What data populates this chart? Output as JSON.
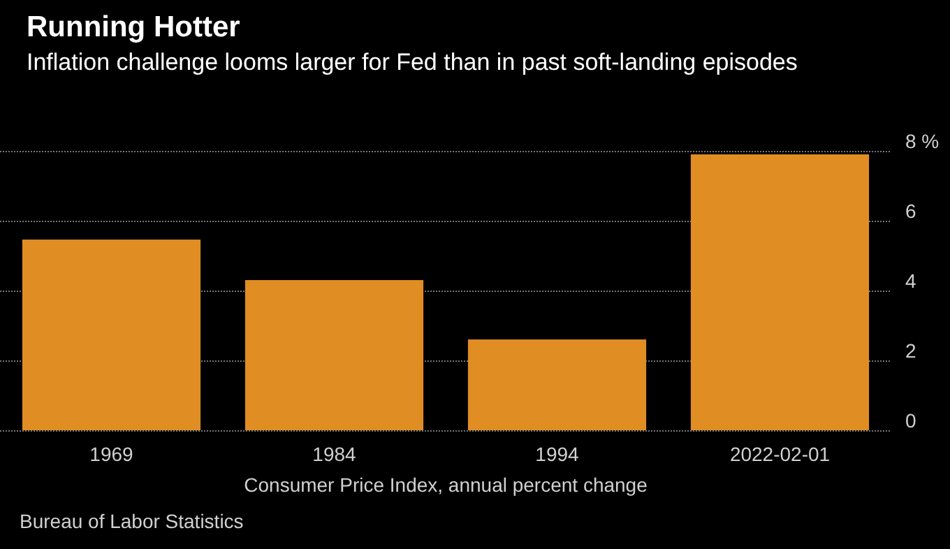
{
  "chart_data": {
    "type": "bar",
    "title": "Running Hotter",
    "subtitle": "Inflation challenge looms larger for Fed than in past soft-landing episodes",
    "categories": [
      "1969",
      "1984",
      "1994",
      "2022-02-01"
    ],
    "values": [
      5.46,
      4.3,
      2.6,
      7.9
    ],
    "color": "#e08d24",
    "xlabel": "Consumer Price Index, annual percent change",
    "ylim": [
      0,
      8
    ],
    "yticks": [
      0,
      2,
      4,
      6,
      {
        "value": 8,
        "label": "8 %"
      }
    ],
    "grid": "y",
    "annotations": [
      "Bureau of Labor Statistics"
    ]
  }
}
